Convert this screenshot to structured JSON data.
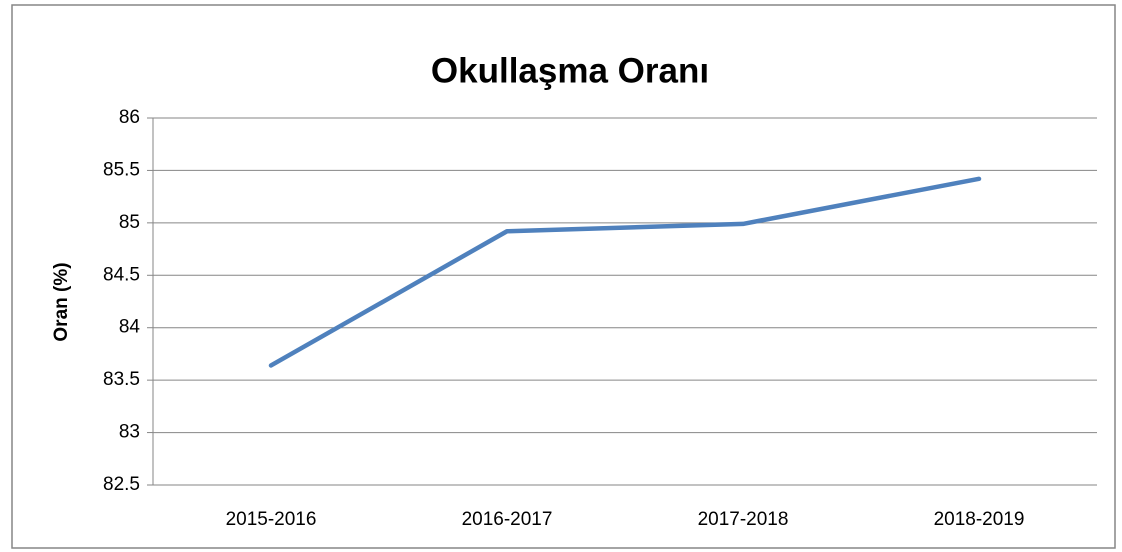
{
  "chart_data": {
    "type": "line",
    "title": "Okullaşma Oranı",
    "y_label": "Oran (%)",
    "categories": [
      "2015-2016",
      "2016-2017",
      "2017-2018",
      "2018-2019"
    ],
    "series": [
      {
        "name": "Okullaşma Oranı",
        "color": "#4f81bd",
        "values": [
          83.64,
          84.92,
          84.99,
          85.42
        ]
      }
    ],
    "ylim": [
      82.5,
      86
    ],
    "yticks": [
      82.5,
      83,
      83.5,
      84,
      84.5,
      85,
      85.5,
      86
    ],
    "grid": true
  }
}
